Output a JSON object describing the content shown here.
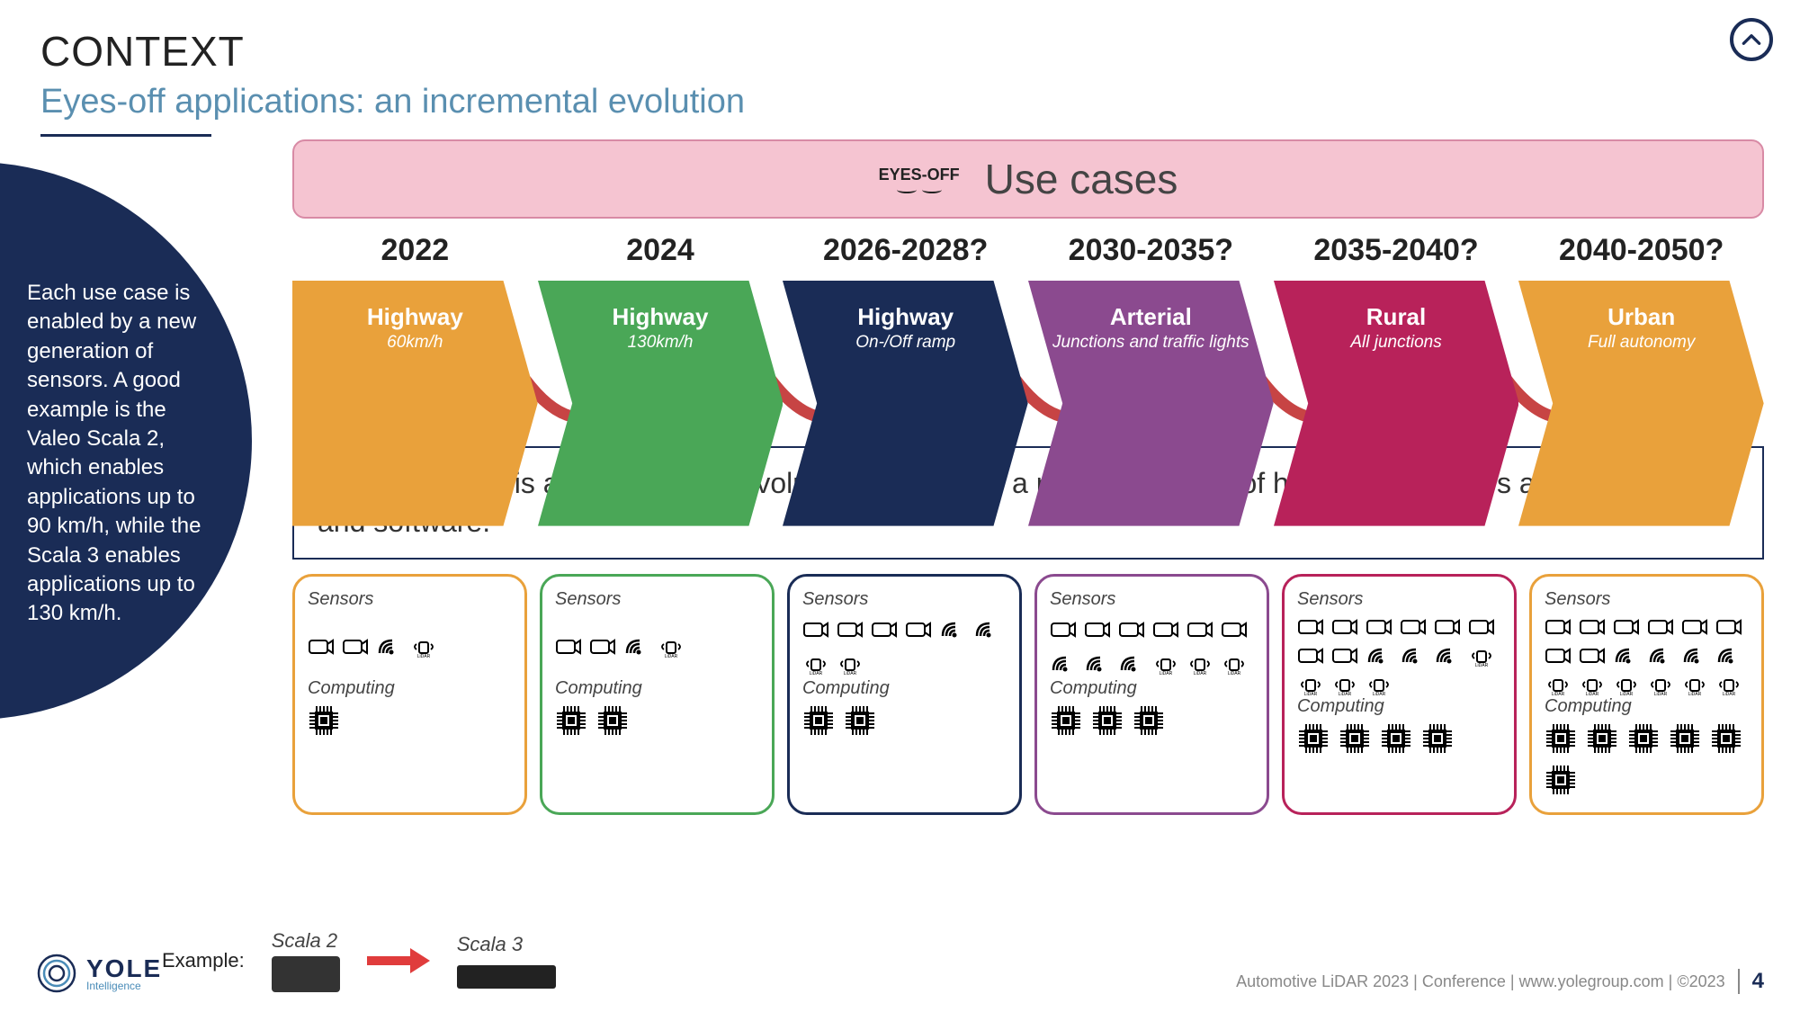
{
  "header": {
    "title": "CONTEXT",
    "subtitle": "Eyes-off applications: an incremental evolution"
  },
  "side_panel": {
    "text": "Each use case is enabled by a new generation of sensors. A good example is the Valeo Scala 2, which enables applications up to 90 km/h, while the Scala 3 enables applications up to 130 km/h."
  },
  "use_cases_banner": {
    "eyes_off": "EYES-OFF",
    "title": "Use cases"
  },
  "timeline": [
    {
      "year": "2022",
      "title": "Highway",
      "sub": "60km/h",
      "color": "#e9a13b"
    },
    {
      "year": "2024",
      "title": "Highway",
      "sub": "130km/h",
      "color": "#4aa757"
    },
    {
      "year": "2026-2028?",
      "title": "Highway",
      "sub": "On-/Off ramp",
      "color": "#1a2c56"
    },
    {
      "year": "2030-2035?",
      "title": "Arterial",
      "sub": "Junctions and traffic lights",
      "color": "#8b4a8f"
    },
    {
      "year": "2035-2040?",
      "title": "Rural",
      "sub": "All junctions",
      "color": "#b8225a"
    },
    {
      "year": "2040-2050?",
      "title": "Urban",
      "sub": "Full autonomy",
      "color": "#e9a13b"
    }
  ],
  "curve_color": "#c74444",
  "description": "Each use case is an incremental evolution enabled by a new generation of hardware (sensors and computing) and software.",
  "hw_labels": {
    "sensors": "Sensors",
    "computing": "Computing"
  },
  "hw_boxes": [
    {
      "border": "#e9a13b",
      "cams": 2,
      "radars": 1,
      "lidars": 1,
      "chips": 1
    },
    {
      "border": "#4aa757",
      "cams": 2,
      "radars": 1,
      "lidars": 1,
      "chips": 2
    },
    {
      "border": "#1a2c56",
      "cams": 4,
      "radars": 2,
      "lidars": 2,
      "chips": 2
    },
    {
      "border": "#8b4a8f",
      "cams": 6,
      "radars": 3,
      "lidars": 3,
      "chips": 3
    },
    {
      "border": "#b8225a",
      "cams": 8,
      "radars": 3,
      "lidars": 4,
      "chips": 4
    },
    {
      "border": "#e9a13b",
      "cams": 8,
      "radars": 4,
      "lidars": 6,
      "chips": 6
    }
  ],
  "example": {
    "label": "Example:",
    "item1": "Scala 2",
    "item2": "Scala 3"
  },
  "footer": {
    "text": "Automotive LiDAR 2023 | Conference | www.yolegroup.com | ©2023",
    "page": "4",
    "logo_main": "YOLE",
    "logo_sub": "Intelligence"
  }
}
